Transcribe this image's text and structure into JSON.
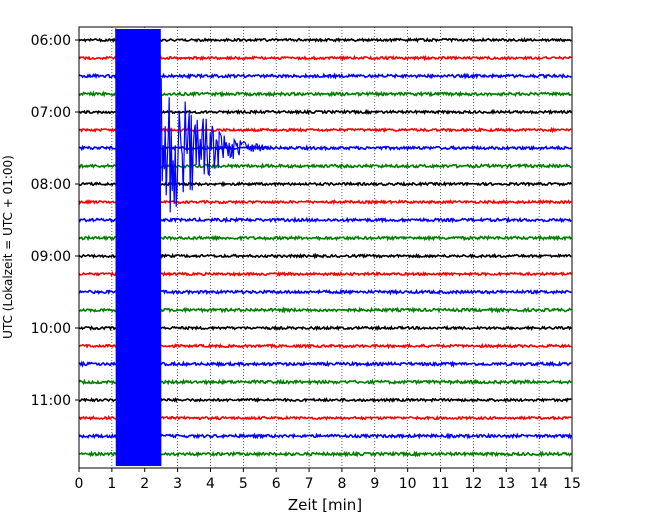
{
  "chart_data": {
    "type": "line",
    "subtype": "helicorder",
    "xlabel": "Zeit  [min]",
    "ylabel": "UTC (Lokalzeit = UTC + 01:00)",
    "xlim": [
      0,
      15
    ],
    "x_ticks": [
      0,
      1,
      2,
      3,
      4,
      5,
      6,
      7,
      8,
      9,
      10,
      11,
      12,
      13,
      14,
      15
    ],
    "x_tick_labels": [
      "0",
      "1",
      "2",
      "3",
      "4",
      "5",
      "6",
      "7",
      "8",
      "9",
      "10",
      "11",
      "12",
      "13",
      "14",
      "15"
    ],
    "y_tick_labels": [
      "06:00",
      "07:00",
      "08:00",
      "09:00",
      "10:00",
      "11:00"
    ],
    "grid": "vertical dotted at each minute",
    "trace_colors": [
      "#000000",
      "#ff0000",
      "#0000ff",
      "#008000"
    ],
    "trace_interval_minutes": 15,
    "trace_count": 24,
    "event": {
      "start_minute": 1.1,
      "end_minute": 2.5,
      "coda_end_minute": 5.8,
      "trace_color": "#0000ff"
    }
  }
}
